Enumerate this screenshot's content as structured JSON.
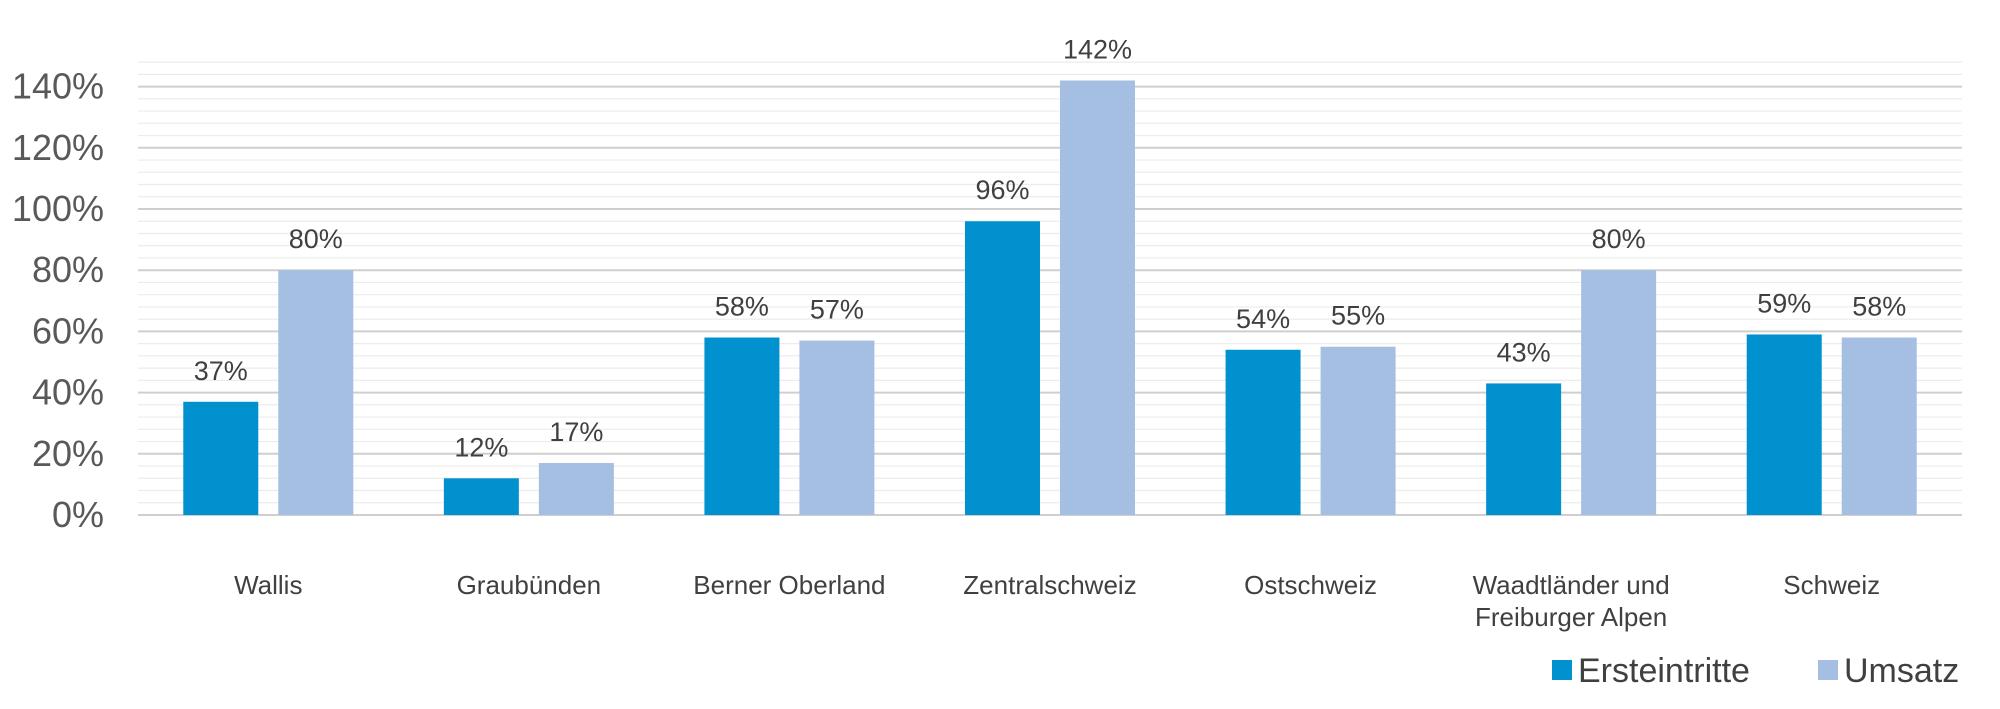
{
  "chart_data": {
    "type": "bar",
    "title": "",
    "xlabel": "",
    "ylabel": "",
    "ylim": [
      0,
      150
    ],
    "yticks": [
      0,
      20,
      40,
      60,
      80,
      100,
      120,
      140
    ],
    "ytick_labels": [
      "0%",
      "20%",
      "40%",
      "60%",
      "80%",
      "100%",
      "120%",
      "140%"
    ],
    "minor_grid_step": 4,
    "grid": true,
    "legend_position": "bottom-right",
    "categories": [
      [
        "Wallis"
      ],
      [
        "Graubünden"
      ],
      [
        "Berner Oberland"
      ],
      [
        "Zentralschweiz"
      ],
      [
        "Ostschweiz"
      ],
      [
        "Waadtländer und",
        "Freiburger Alpen"
      ],
      [
        "Schweiz"
      ]
    ],
    "series": [
      {
        "name": "Ersteintritte",
        "color": "#0091CE",
        "values": [
          37,
          12,
          58,
          96,
          54,
          43,
          59
        ],
        "labels": [
          "37%",
          "12%",
          "58%",
          "96%",
          "54%",
          "43%",
          "59%"
        ]
      },
      {
        "name": "Umsatz",
        "color": "#A4BFE2",
        "values": [
          80,
          17,
          57,
          142,
          55,
          80,
          58
        ],
        "labels": [
          "80%",
          "17%",
          "57%",
          "142%",
          "55%",
          "80%",
          "58%"
        ]
      }
    ]
  }
}
